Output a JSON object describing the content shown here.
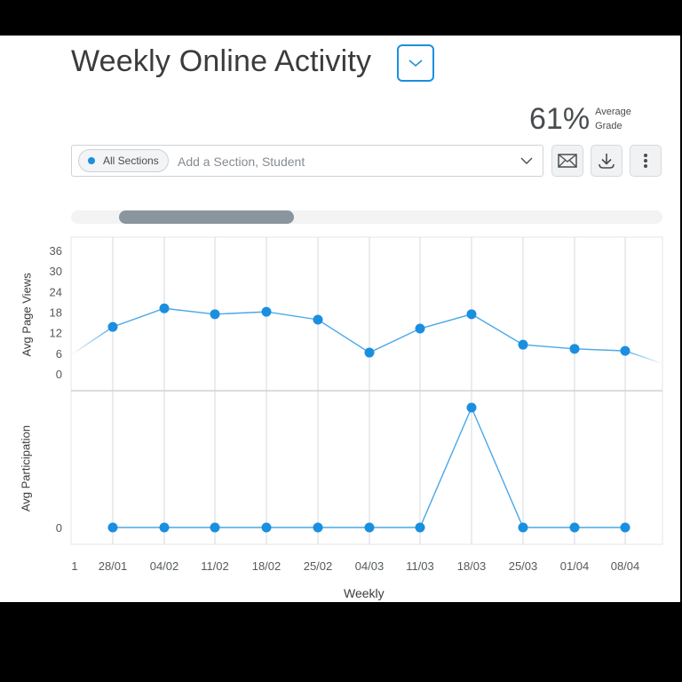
{
  "header": {
    "title": "Weekly Online Activity",
    "title_dropdown_icon": "chevron-down-icon"
  },
  "grade": {
    "value": "61%",
    "label_line1": "Average",
    "label_line2": "Grade"
  },
  "filter": {
    "chip_label": "All Sections",
    "chip_color": "#1a8fe0",
    "placeholder": "Add a Section, Student",
    "value": ""
  },
  "toolbar": {
    "email_icon": "envelope-icon",
    "download_icon": "download-icon",
    "more_icon": "more-vertical-icon"
  },
  "colors": {
    "accent": "#1a8fe0",
    "line": "#4aa8e8",
    "grid": "#d5d8dc",
    "scroll_thumb": "#8a959e"
  },
  "chart_data": [
    {
      "type": "line",
      "title": "Weekly Online Activity",
      "ylabel": "Avg Page Views",
      "xlabel": "Weekly",
      "ylim": [
        0,
        36
      ],
      "yticks": [
        "0",
        "6",
        "12",
        "18",
        "24",
        "30",
        "36"
      ],
      "categories": [
        "28/01",
        "04/02",
        "11/02",
        "18/02",
        "25/02",
        "04/03",
        "11/03",
        "18/03",
        "25/03",
        "01/04",
        "08/04"
      ],
      "series": [
        {
          "name": "Avg Page Views",
          "values": [
            13.7,
            19.1,
            17.4,
            18.1,
            15.8,
            6.2,
            13.2,
            17.4,
            8.5,
            7.3,
            6.7
          ]
        }
      ],
      "grid": true
    },
    {
      "type": "line",
      "ylabel": "Avg Participation",
      "xlabel": "Weekly",
      "yticks": [
        "0"
      ],
      "categories": [
        "28/01",
        "04/02",
        "11/02",
        "18/02",
        "25/02",
        "04/03",
        "11/03",
        "18/03",
        "25/03",
        "01/04",
        "08/04"
      ],
      "series": [
        {
          "name": "Avg Participation",
          "values": [
            0,
            0,
            0,
            0,
            0,
            0,
            0,
            1,
            0,
            0,
            0
          ]
        }
      ],
      "grid": true
    }
  ],
  "axis": {
    "x_first_label": "1",
    "x_labels": [
      "28/01",
      "04/02",
      "11/02",
      "18/02",
      "25/02",
      "04/03",
      "11/03",
      "18/03",
      "25/03",
      "01/04",
      "08/04"
    ],
    "x_title": "Weekly",
    "upper_ylabel": "Avg Page Views",
    "lower_ylabel": "Avg Participation",
    "upper_yticks": [
      "36",
      "30",
      "24",
      "18",
      "12",
      "6",
      "0"
    ],
    "lower_yticks": [
      "0"
    ]
  }
}
